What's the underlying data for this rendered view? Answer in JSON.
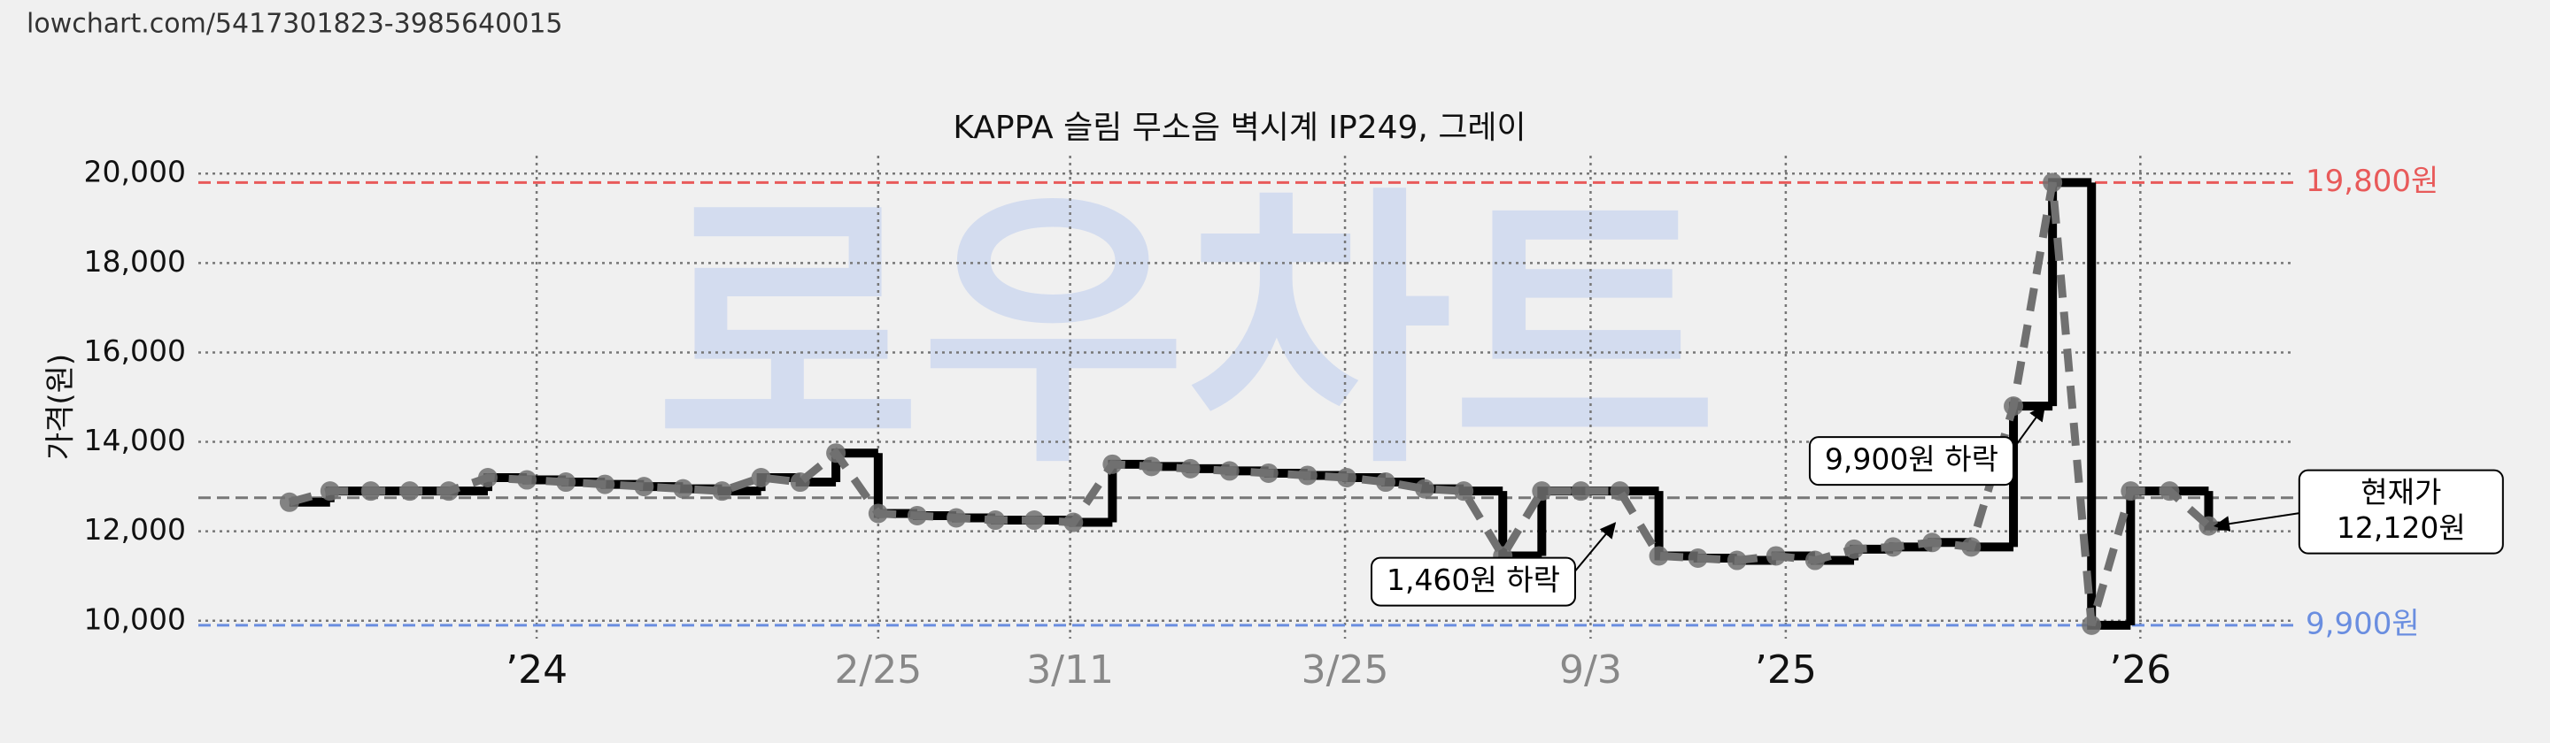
{
  "url": "lowchart.com/5417301823-3985640015",
  "chart_data": {
    "type": "line",
    "title": "KAPPA 슬림 무소음 벽시계 IP249, 그레이",
    "y_label": "가격(원)",
    "watermark": "로우차트",
    "xlim": [
      0,
      128.8
    ],
    "ylim": [
      9600,
      20400
    ],
    "xticks": [
      {
        "value": 20.8,
        "label": "’24"
      },
      {
        "value": 41.8,
        "label": "2/25"
      },
      {
        "value": 53.6,
        "label": "3/11"
      },
      {
        "value": 70.5,
        "label": "3/25"
      },
      {
        "value": 85.6,
        "label": "9/3"
      },
      {
        "value": 97.6,
        "label": "’25"
      },
      {
        "value": 119.4,
        "label": "’26"
      }
    ],
    "yticks": [
      {
        "value": 10000,
        "label": "10,000"
      },
      {
        "value": 12000,
        "label": "12,000"
      },
      {
        "value": 14000,
        "label": "14,000"
      },
      {
        "value": 16000,
        "label": "16,000"
      },
      {
        "value": 18000,
        "label": "18,000"
      },
      {
        "value": 20000,
        "label": "20,000"
      }
    ],
    "grid": true,
    "series": [
      {
        "color": "#000000",
        "dash_color": "#707070",
        "x": [
          5.6,
          8.1,
          10.6,
          13,
          15.4,
          17.8,
          20.2,
          22.6,
          25,
          27.4,
          29.8,
          32.2,
          34.6,
          37,
          39.2,
          41.8,
          44.2,
          46.6,
          49,
          51.4,
          53.8,
          56.2,
          58.6,
          61,
          63.4,
          65.8,
          68.2,
          70.6,
          73,
          75.4,
          77.8,
          80.2,
          82.6,
          85,
          87.4,
          89.8,
          92.2,
          94.6,
          97,
          99.4,
          101.8,
          104.2,
          106.6,
          109,
          111.6,
          114,
          116.4,
          118.8,
          121.2,
          123.6
        ],
        "values": [
          12650,
          12900,
          12900,
          12900,
          12900,
          13200,
          13150,
          13100,
          13050,
          13000,
          12950,
          12900,
          13200,
          13100,
          13750,
          12400,
          12350,
          12300,
          12250,
          12250,
          12200,
          13500,
          13450,
          13400,
          13350,
          13300,
          13250,
          13200,
          13100,
          12950,
          12900,
          11450,
          12900,
          12900,
          12900,
          11450,
          11400,
          11350,
          11450,
          11350,
          11600,
          11650,
          11750,
          11650,
          14800,
          19800,
          9900,
          12900,
          12900,
          12120
        ]
      }
    ],
    "ref_lines": [
      {
        "value": 19800,
        "label": "19,800원",
        "color": "#e85a5a"
      },
      {
        "value": 9900,
        "label": "9,900원",
        "color": "#6a8ee0"
      },
      {
        "value": 12750,
        "color": "#777777"
      }
    ],
    "annotations": [
      {
        "lines": [
          "1,460원 하락"
        ],
        "x": 87.1,
        "y": 12180
      },
      {
        "lines": [
          "9,900원 하락"
        ],
        "x": 113.5,
        "y": 14800
      },
      {
        "lines": [
          "현재가",
          "12,120원"
        ],
        "x": 124,
        "y": 12120
      }
    ]
  }
}
